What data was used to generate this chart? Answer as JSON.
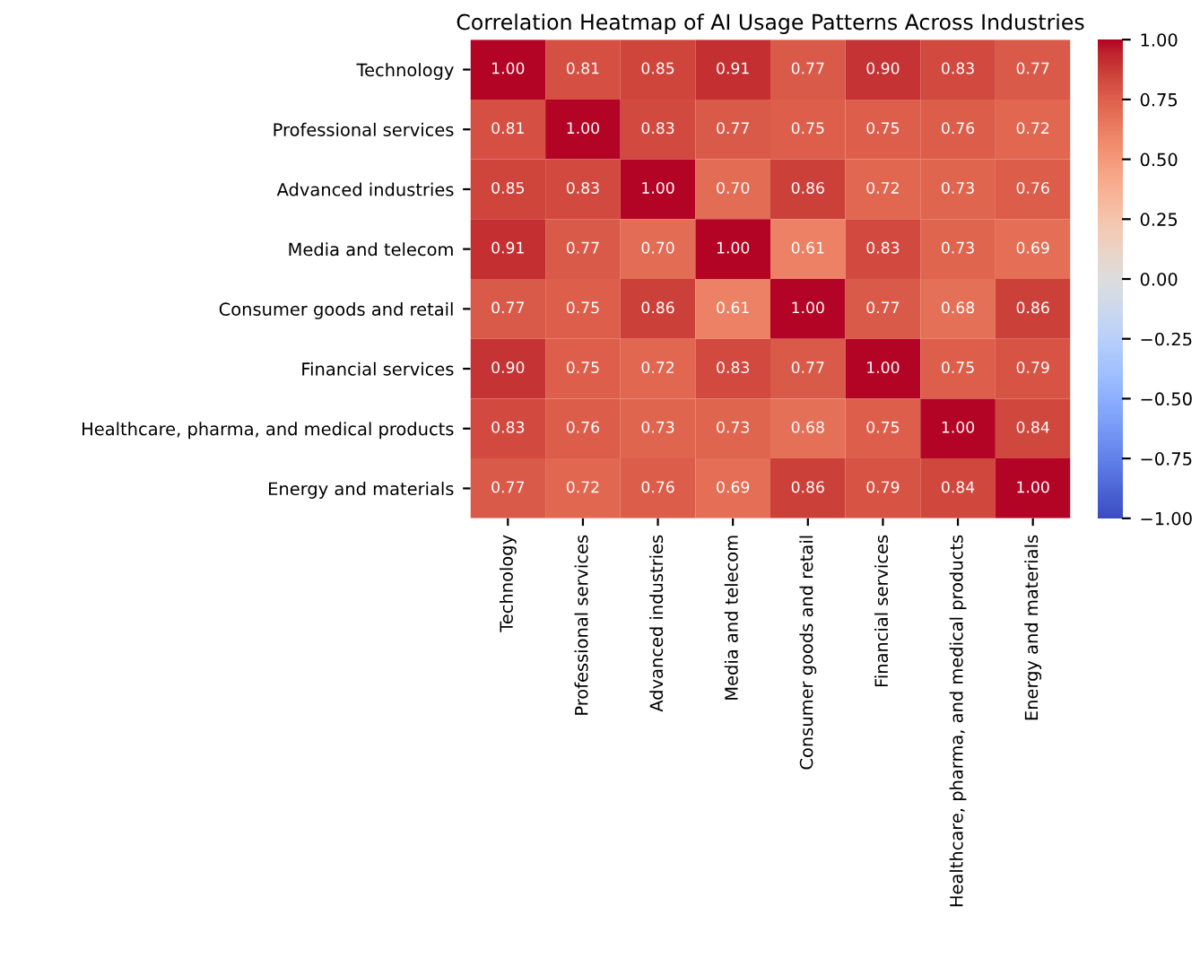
{
  "chart_data": {
    "type": "heatmap",
    "title": "Correlation Heatmap of AI Usage Patterns Across Industries",
    "categories": [
      "Technology",
      "Professional services",
      "Advanced industries",
      "Media and telecom",
      "Consumer goods and retail",
      "Financial services",
      "Healthcare, pharma, and medical products",
      "Energy and materials"
    ],
    "y_categories": [
      "Technology",
      "Professional services",
      "Advanced industries",
      "Media and telecom",
      "Consumer goods and retail",
      "Financial services",
      "Healthcare, pharma, and medical products",
      "Energy and materials"
    ],
    "cells": [
      [
        1.0,
        0.81,
        0.85,
        0.91,
        0.77,
        0.9,
        0.83,
        0.77
      ],
      [
        0.81,
        1.0,
        0.83,
        0.77,
        0.75,
        0.75,
        0.76,
        0.72
      ],
      [
        0.85,
        0.83,
        1.0,
        0.7,
        0.86,
        0.72,
        0.73,
        0.76
      ],
      [
        0.91,
        0.77,
        0.7,
        1.0,
        0.61,
        0.83,
        0.73,
        0.69
      ],
      [
        0.77,
        0.75,
        0.86,
        0.61,
        1.0,
        0.77,
        0.68,
        0.86
      ],
      [
        0.9,
        0.75,
        0.72,
        0.83,
        0.77,
        1.0,
        0.75,
        0.79
      ],
      [
        0.83,
        0.76,
        0.73,
        0.73,
        0.68,
        0.75,
        1.0,
        0.84
      ],
      [
        0.77,
        0.72,
        0.76,
        0.69,
        0.86,
        0.79,
        0.84,
        1.0
      ]
    ],
    "cell_labels": [
      [
        "1.00",
        "0.81",
        "0.85",
        "0.91",
        "0.77",
        "0.90",
        "0.83",
        "0.77"
      ],
      [
        "0.81",
        "1.00",
        "0.83",
        "0.77",
        "0.75",
        "0.75",
        "0.76",
        "0.72"
      ],
      [
        "0.85",
        "0.83",
        "1.00",
        "0.70",
        "0.86",
        "0.72",
        "0.73",
        "0.76"
      ],
      [
        "0.91",
        "0.77",
        "0.70",
        "1.00",
        "0.61",
        "0.83",
        "0.73",
        "0.69"
      ],
      [
        "0.77",
        "0.75",
        "0.86",
        "0.61",
        "1.00",
        "0.77",
        "0.68",
        "0.86"
      ],
      [
        "0.90",
        "0.75",
        "0.72",
        "0.83",
        "0.77",
        "1.00",
        "0.75",
        "0.79"
      ],
      [
        "0.83",
        "0.76",
        "0.73",
        "0.73",
        "0.68",
        "0.75",
        "1.00",
        "0.84"
      ],
      [
        "0.77",
        "0.72",
        "0.76",
        "0.69",
        "0.86",
        "0.79",
        "0.84",
        "1.00"
      ]
    ],
    "clim": [
      -1,
      1
    ],
    "cticks": [
      {
        "value": -1,
        "label": "−1.00"
      },
      {
        "value": -0.75,
        "label": "−0.75"
      },
      {
        "value": -0.5,
        "label": "−0.50"
      },
      {
        "value": -0.25,
        "label": "−0.25"
      },
      {
        "value": 0,
        "label": "0.00"
      },
      {
        "value": 0.25,
        "label": "0.25"
      },
      {
        "value": 0.5,
        "label": "0.50"
      },
      {
        "value": 0.75,
        "label": "0.75"
      },
      {
        "value": 1,
        "label": "1.00"
      }
    ]
  }
}
